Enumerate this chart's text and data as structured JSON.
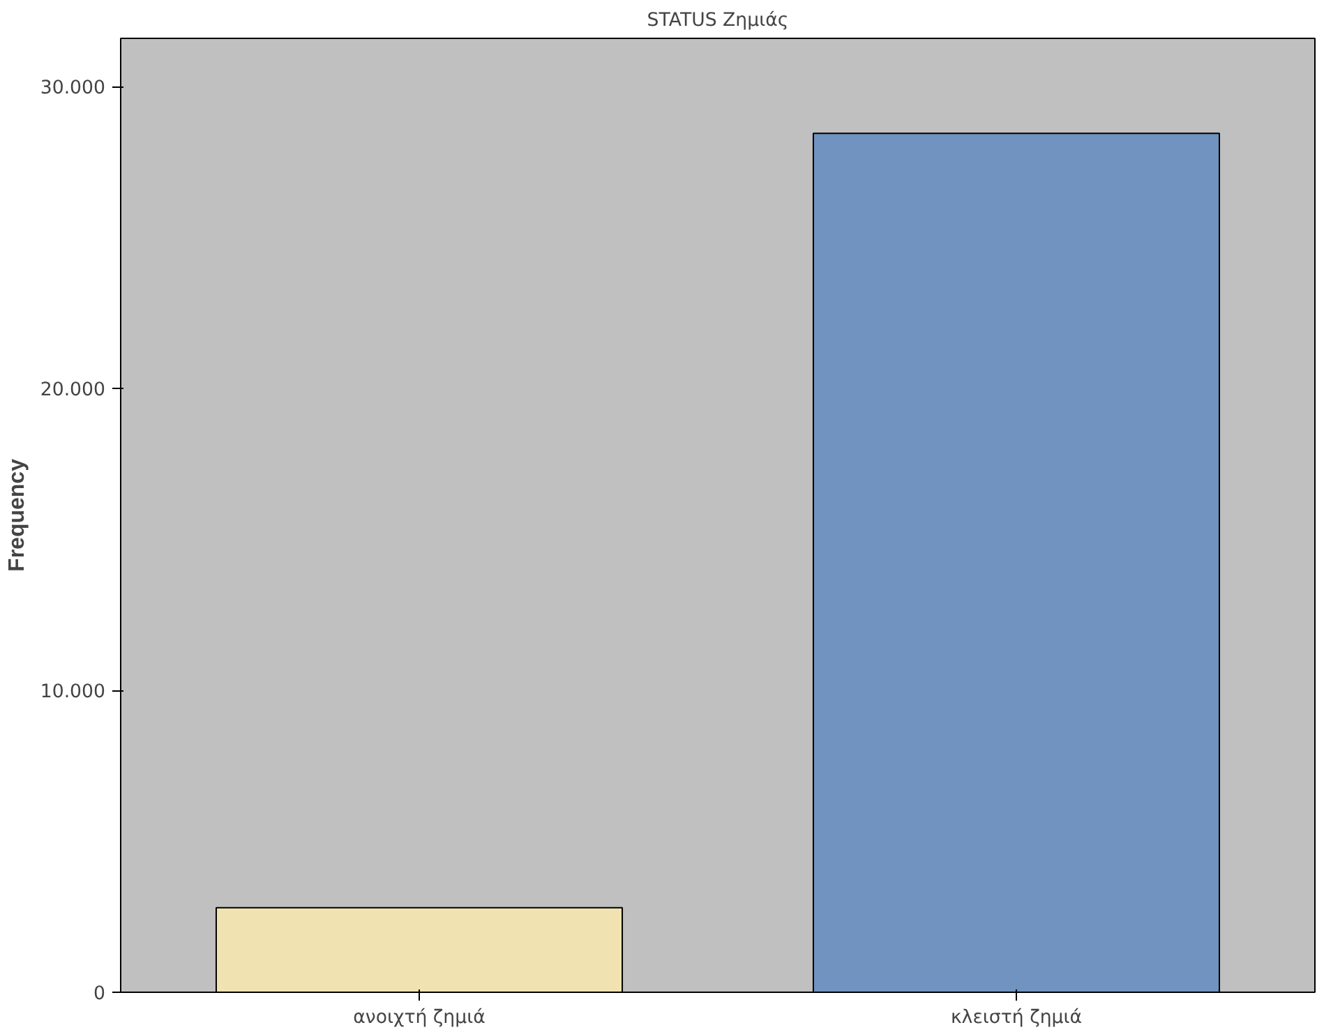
{
  "chart_data": {
    "type": "bar",
    "title": "STATUS Ζημιάς",
    "ylabel": "Frequency",
    "categories": [
      "ανοιχτή ζημιά",
      "κλειστή ζημιά"
    ],
    "values": [
      2800,
      28450
    ],
    "colors": [
      "#f0e3b1",
      "#7093bf"
    ],
    "ylim": [
      0,
      31600
    ],
    "yticks": [
      {
        "value": 0,
        "label": "0"
      },
      {
        "value": 10000,
        "label": "10.000"
      },
      {
        "value": 20000,
        "label": "20.000"
      },
      {
        "value": 30000,
        "label": "30.000"
      }
    ],
    "grid": false
  }
}
